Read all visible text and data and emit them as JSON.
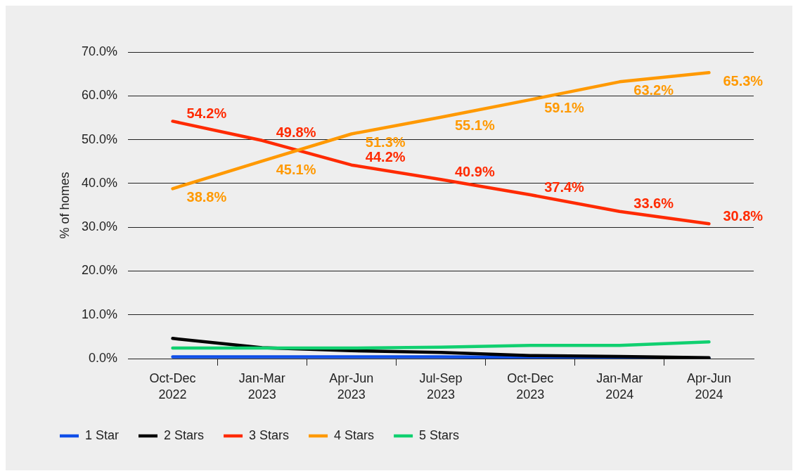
{
  "chart_data": {
    "type": "line",
    "categories": [
      "Oct-Dec 2022",
      "Jan-Mar 2023",
      "Apr-Jun 2023",
      "Jul-Sep 2023",
      "Oct-Dec 2023",
      "Jan-Mar 2024",
      "Apr-Jun 2024"
    ],
    "series": [
      {
        "name": "1 Star",
        "color": "#0f4ee8",
        "values": [
          0.4,
          0.4,
          0.4,
          0.4,
          0.3,
          0.2,
          0.1
        ]
      },
      {
        "name": "2 Stars",
        "color": "#000000",
        "values": [
          4.6,
          2.5,
          1.8,
          1.4,
          0.7,
          0.5,
          0.2
        ]
      },
      {
        "name": "3 Stars",
        "color": "#ff2a00",
        "values": [
          54.2,
          49.8,
          44.2,
          40.9,
          37.4,
          33.6,
          30.8
        ],
        "value_labels": [
          "54.2%",
          "49.8%",
          "44.2%",
          "40.9%",
          "37.4%",
          "33.6%",
          "30.8%"
        ]
      },
      {
        "name": "4 Stars",
        "color": "#ff9900",
        "values": [
          38.8,
          45.1,
          51.3,
          55.1,
          59.1,
          63.2,
          65.3
        ],
        "value_labels": [
          "38.8%",
          "45.1%",
          "51.3%",
          "55.1%",
          "59.1%",
          "63.2%",
          "65.3%"
        ]
      },
      {
        "name": "5 Stars",
        "color": "#10d070",
        "values": [
          2.4,
          2.4,
          2.4,
          2.6,
          3.0,
          3.0,
          3.8
        ]
      }
    ],
    "ylabel": "% of homes",
    "ylim": [
      0,
      70
    ],
    "yticks": [
      {
        "value": 0,
        "label": "0.0%"
      },
      {
        "value": 10,
        "label": "10.0%"
      },
      {
        "value": 20,
        "label": "20.0%"
      },
      {
        "value": 30,
        "label": "30.0%"
      },
      {
        "value": 40,
        "label": "40.0%"
      },
      {
        "value": 50,
        "label": "50.0%"
      },
      {
        "value": 60,
        "label": "60.0%"
      },
      {
        "value": 70,
        "label": "70.0%"
      }
    ],
    "grid": "y",
    "legend": "bottom left",
    "marker": "none"
  }
}
